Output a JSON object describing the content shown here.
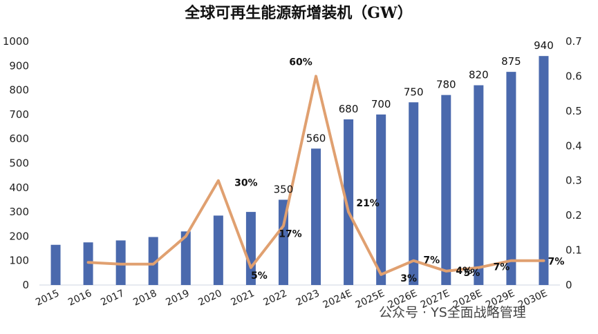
{
  "chart_data": {
    "type": "bar",
    "title": "全球可再生能源新增装机（GW）",
    "categories": [
      "2015",
      "2016",
      "2017",
      "2018",
      "2019",
      "2020",
      "2021",
      "2022",
      "2023",
      "2024E",
      "2025E",
      "2026E",
      "2027E",
      "2028E",
      "2029E",
      "2030E"
    ],
    "series": [
      {
        "type": "bar",
        "axis": "left",
        "color": "#4a69ad",
        "values": [
          165,
          175,
          183,
          197,
          220,
          285,
          300,
          350,
          560,
          680,
          700,
          750,
          780,
          820,
          875,
          940
        ],
        "data_labels": [
          "",
          "",
          "",
          "",
          "",
          "",
          "",
          "350",
          "560",
          "680",
          "700",
          "750",
          "780",
          "820",
          "875",
          "940"
        ]
      },
      {
        "type": "line",
        "axis": "right",
        "color": "#e0a070",
        "values": [
          null,
          0.065,
          0.06,
          0.06,
          0.14,
          0.3,
          0.05,
          0.17,
          0.6,
          0.21,
          0.03,
          0.07,
          0.04,
          0.05,
          0.07,
          0.07
        ],
        "data_labels": [
          "",
          "",
          "",
          "",
          "",
          "30%",
          "5%",
          "17%",
          "60%",
          "21%",
          "3%",
          "7%",
          "4%",
          "5%",
          "7%",
          "7%"
        ]
      }
    ],
    "y_left": {
      "ylim": [
        0,
        1000
      ],
      "ticks": [
        "0",
        "100",
        "200",
        "300",
        "400",
        "500",
        "600",
        "700",
        "800",
        "900",
        "1000"
      ]
    },
    "y_right": {
      "ylim": [
        0,
        0.7
      ],
      "ticks": [
        "0",
        "0.1",
        "0.2",
        "0.3",
        "0.4",
        "0.5",
        "0.6",
        "0.7"
      ]
    },
    "grid": false,
    "legend": "none"
  },
  "watermark": "公众号 · YS全面战略管理"
}
